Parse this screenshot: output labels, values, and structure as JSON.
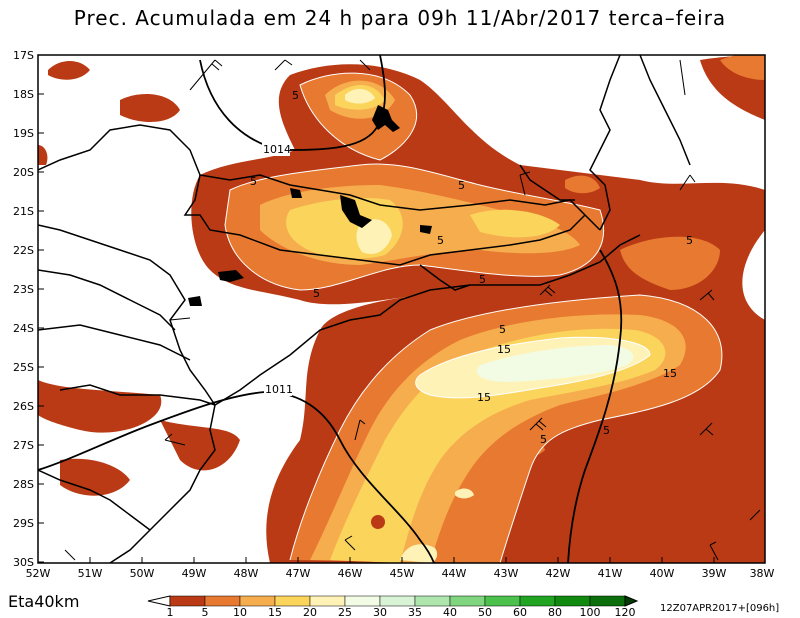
{
  "title": "Prec. Acumulada em 24 h para 09h 11/Abr/2017 terca–feira",
  "model": "Eta40km",
  "run_info": "12Z07APR2017+[096h]",
  "lat_labels": [
    "17S",
    "18S",
    "19S",
    "20S",
    "21S",
    "22S",
    "23S",
    "24S",
    "25S",
    "26S",
    "27S",
    "28S",
    "29S",
    "30S"
  ],
  "lon_labels": [
    "52W",
    "51W",
    "50W",
    "49W",
    "48W",
    "47W",
    "46W",
    "45W",
    "44W",
    "43W",
    "42W",
    "41W",
    "40W",
    "39W",
    "38W"
  ],
  "precip_contour_labels": [
    "5",
    "5",
    "5",
    "5",
    "5",
    "5",
    "5",
    "5",
    "15",
    "15",
    "15",
    "5"
  ],
  "pressure_labels": [
    "1014",
    "1011"
  ],
  "colorbar": {
    "levels": [
      "1",
      "5",
      "10",
      "15",
      "20",
      "25",
      "30",
      "35",
      "40",
      "50",
      "60",
      "80",
      "100",
      "120"
    ],
    "colors": [
      "#b93a14",
      "#e87930",
      "#f6ad4e",
      "#fbd45c",
      "#fff2b6",
      "#f2fbe4",
      "#d8f3d6",
      "#aee6ae",
      "#7fd67f",
      "#4cc24c",
      "#21a421",
      "#0f8a0f",
      "#0a6e0a",
      "#075507",
      "#043c04"
    ]
  },
  "legend_colors": {
    "lvl1": "#b93a14",
    "lvl5": "#e87930",
    "lvl10": "#f6ad4e",
    "lvl15": "#fbd45c",
    "lvl20": "#fff2b6",
    "lvl25": "#f2fbe4"
  }
}
